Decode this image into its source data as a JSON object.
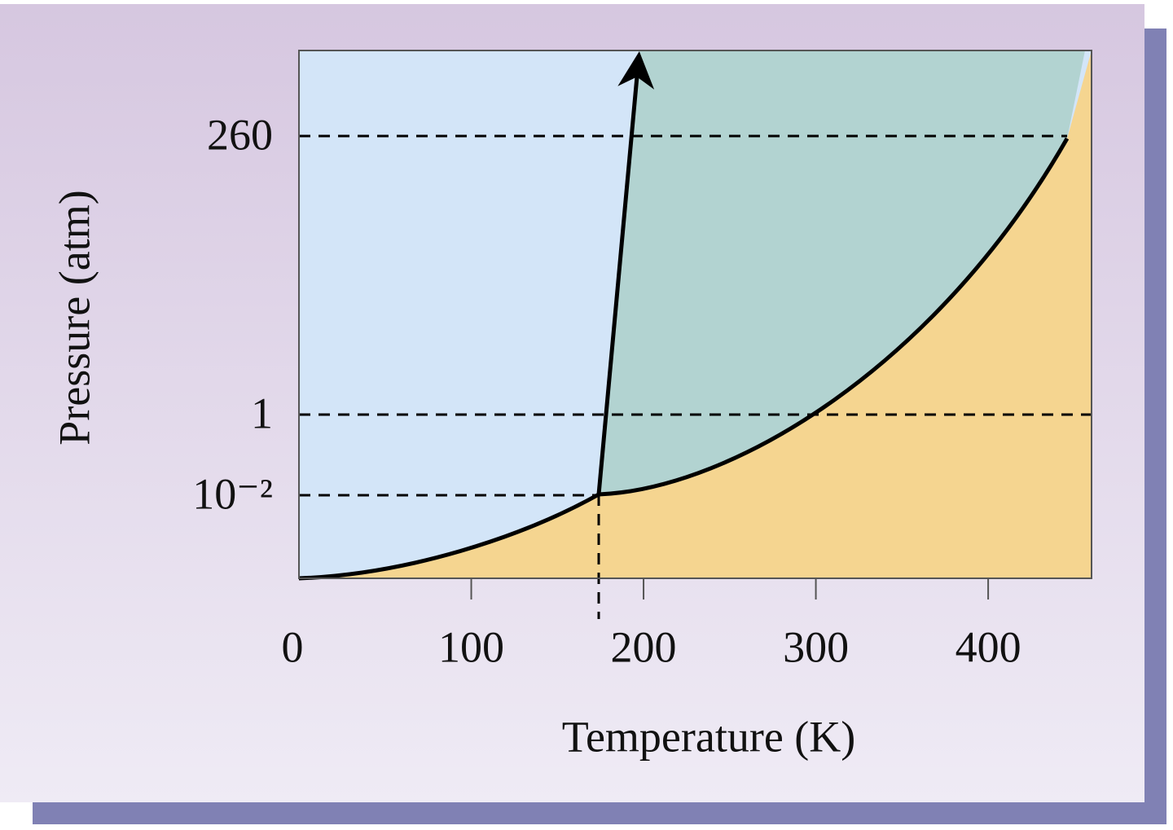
{
  "chart_data": {
    "type": "phase-diagram",
    "x_label": "Temperature (K)",
    "y_label": "Pressure (atm)",
    "xlim": [
      0,
      460
    ],
    "xticks": [
      0,
      100,
      200,
      300,
      400
    ],
    "yticks": [
      {
        "value": 0.01,
        "label": "10⁻²"
      },
      {
        "value": 1,
        "label": "1"
      },
      {
        "value": 260,
        "label": "260"
      }
    ],
    "regions": {
      "solid": "#d3e5f8",
      "liquid": "#b2d3d1",
      "gas": "#f5d590"
    },
    "line_color": "#000000"
  }
}
